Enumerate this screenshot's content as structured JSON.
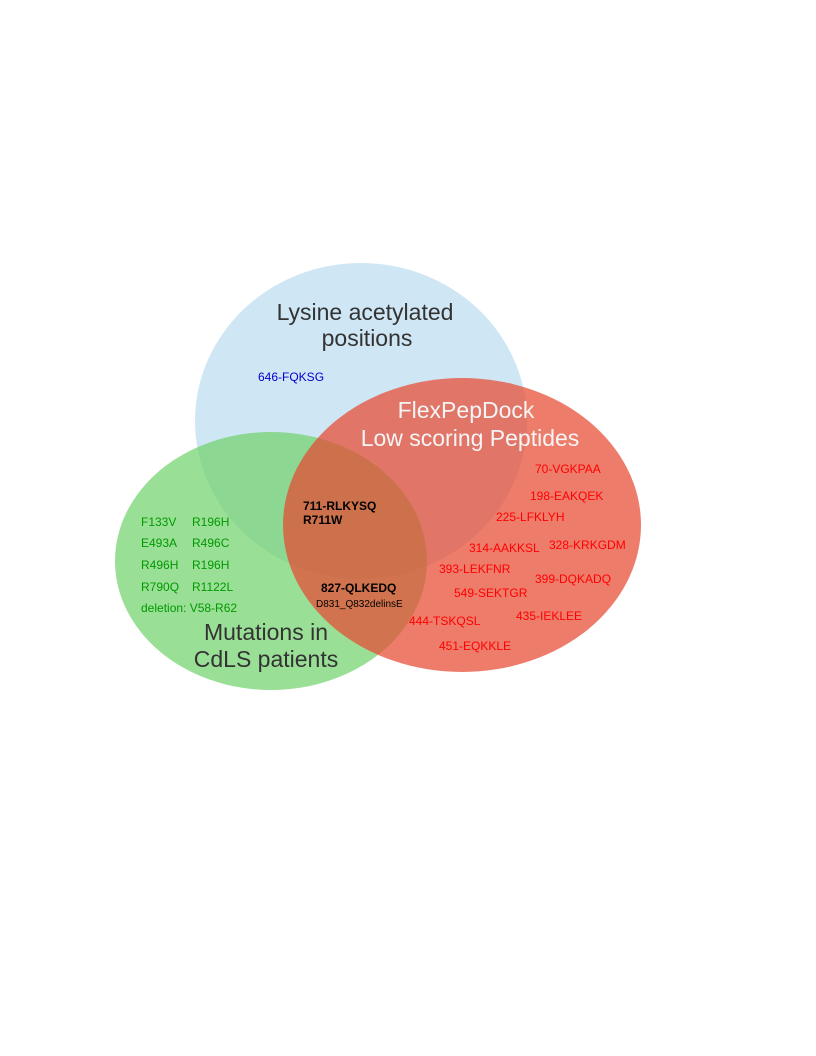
{
  "sets": {
    "lysine": {
      "label_line1": "Lysine acetylated",
      "label_line2": "positions",
      "color": "#a8d2ec",
      "text_color": "#333333"
    },
    "flexpep": {
      "label_line1": "FlexPepDock",
      "label_line2": "Low scoring Peptides",
      "color": "#e64a32",
      "text_color": "#f5f5f5"
    },
    "mutations": {
      "label_line1": "Mutations in",
      "label_line2": "CdLS patients",
      "color": "#6fd16a",
      "text_color": "#333333"
    }
  },
  "regions": {
    "lysine_only": [
      "646-FQKSG"
    ],
    "all_three": [
      "711-RLKYSQ",
      "R711W"
    ],
    "flex_mut": [
      "827-QLKEDQ",
      "D831_Q832delinsE"
    ],
    "mutations_only": [
      "F133V",
      "R196H",
      "E493A",
      "R496C",
      "R496H",
      "R196H",
      "R790Q",
      "R1122L",
      "deletion: V58-R62"
    ],
    "flexpep_only": [
      "70-VGKPAA",
      "198-EAKQEK",
      "225-LFKLYH",
      "314-AAKKSL",
      "328-KRKGDM",
      "393-LEKFNR",
      "399-DQKADQ",
      "549-SEKTGR",
      "444-TSKQSL",
      "435-IEKLEE",
      "451-EQKKLE"
    ]
  },
  "colors": {
    "lysine_text": "#0000cc",
    "mutation_text": "#009900",
    "flexpep_text": "#ff0000",
    "shared_text": "#000000"
  }
}
